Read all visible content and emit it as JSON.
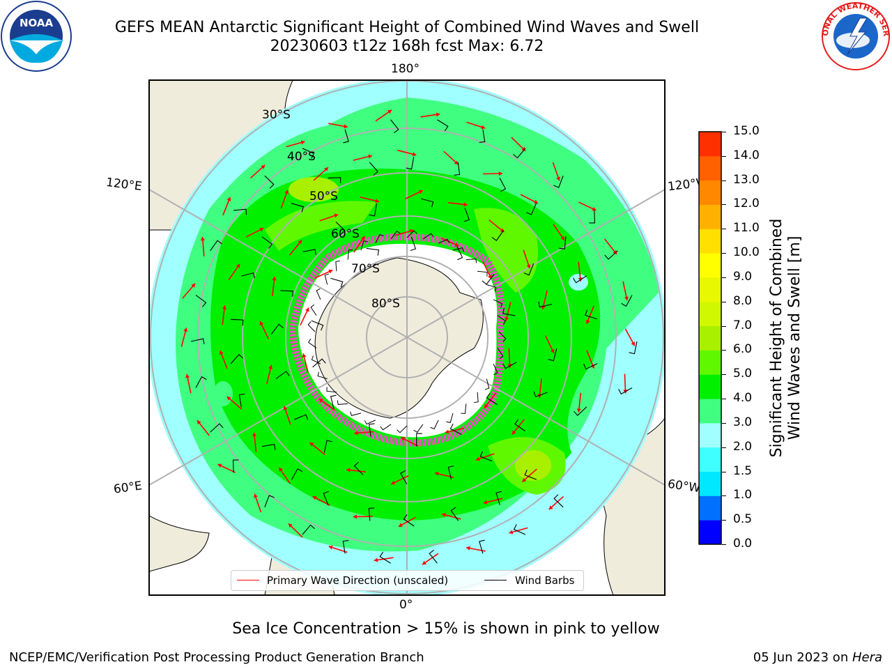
{
  "title": {
    "line1": "GEFS MEAN Antarctic Significant Height of Combined Wind Waves and Swell",
    "line2": "20230603 t12z 168h fcst   Max: 6.72"
  },
  "map": {
    "longitude_labels": {
      "top": "180°",
      "bottom": "0°",
      "upper_left": "120°E",
      "upper_right": "120°W",
      "lower_left": "60°E",
      "lower_right": "60°W"
    },
    "latitude_labels": [
      "30°S",
      "40°S",
      "50°S",
      "60°S",
      "70°S",
      "80°S"
    ],
    "colors": {
      "land": "#efecdc",
      "ice_shelf": "#ffffff",
      "sea_ice": "#ff44cc",
      "wave_arrow": "#ff0000",
      "wind_barb": "#000000",
      "graticule": "#b0b0b0"
    },
    "legend": {
      "wave_direction": "Primary Wave Direction (unscaled)",
      "wind_barbs": "Wind Barbs"
    }
  },
  "colorbar": {
    "title_line1": "Significant Height of Combined",
    "title_line2": "Wind Waves and Swell [m]",
    "ticks": [
      "15.0",
      "14.0",
      "13.0",
      "12.0",
      "11.0",
      "10.0",
      "9.0",
      "8.0",
      "7.0",
      "6.0",
      "5.0",
      "4.0",
      "3.0",
      "2.0",
      "1.5",
      "1.0",
      "0.5",
      "0.0"
    ],
    "colors_bottom_to_top": [
      "#0000ff",
      "#0070ff",
      "#00e8ff",
      "#40ffff",
      "#a0ffff",
      "#40ff80",
      "#00f000",
      "#60f800",
      "#a8f000",
      "#d0f800",
      "#e8f800",
      "#ffff00",
      "#ffe000",
      "#ffb000",
      "#ff8800",
      "#ff6000",
      "#ff3000",
      "#ff0000"
    ]
  },
  "caption": "Sea Ice Concentration > 15% is shown in pink to yellow",
  "footer": {
    "left": "NCEP/EMC/Verification Post Processing Product Generation Branch",
    "right_date": "05 Jun 2023 on ",
    "right_host": "Hera"
  },
  "logos": {
    "noaa_text": "NOAA",
    "nws_text": "NATIONAL WEATHER SERVICE"
  }
}
